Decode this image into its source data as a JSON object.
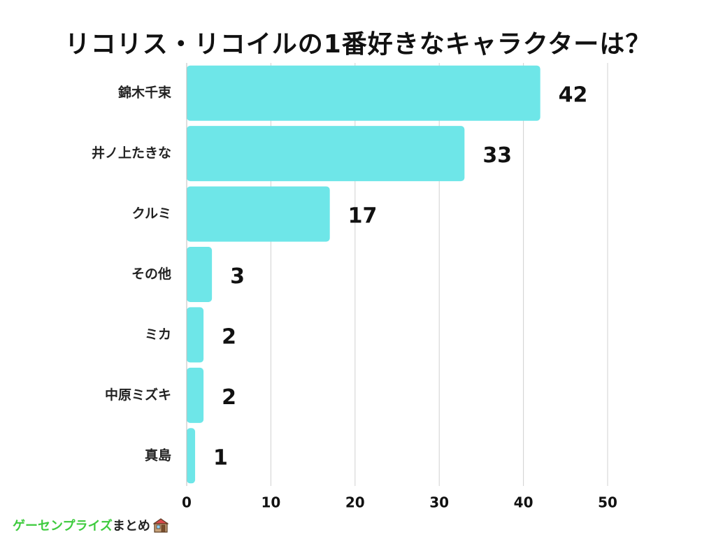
{
  "chart_data": {
    "type": "bar",
    "orientation": "horizontal",
    "title": "リコリス・リコイルの1番好きなキャラクターは？",
    "categories": [
      "錦木千束",
      "井ノ上たきな",
      "クルミ",
      "その他",
      "ミカ",
      "中原ミズキ",
      "真島"
    ],
    "values": [
      42,
      33,
      17,
      3,
      2,
      2,
      1
    ],
    "xlim": [
      0,
      50
    ],
    "xticks": [
      0,
      10,
      20,
      30,
      40,
      50
    ],
    "grid": true,
    "legend": "none",
    "bar_color": "#6ee6e8"
  },
  "footer": {
    "brand_segments": [
      {
        "text": "ゲーセンプライズ",
        "color": "#3ecb3e"
      },
      {
        "text": "まとめ",
        "color": "#222222"
      }
    ],
    "icon": "shop-icon"
  }
}
